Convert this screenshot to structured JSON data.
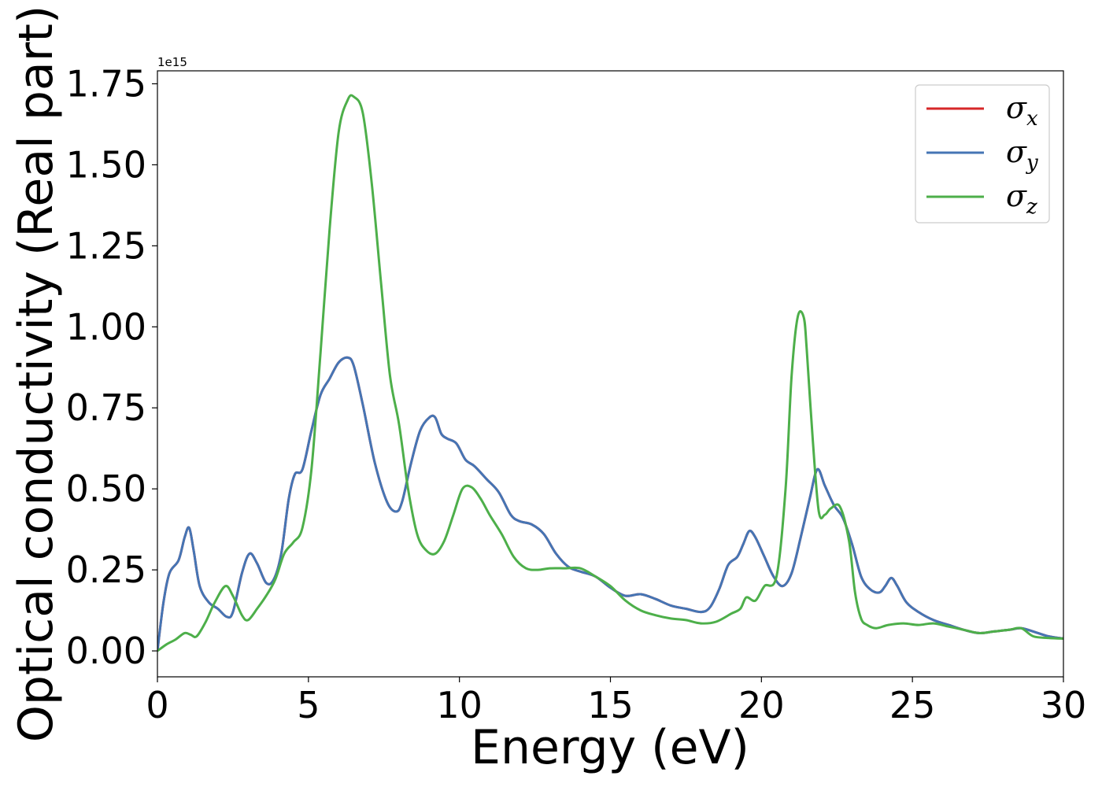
{
  "chart_data": {
    "type": "line",
    "xlabel": "Energy (eV)",
    "ylabel": "Optical conductivity (Real part)",
    "offset_text": "1e15",
    "xlim": [
      0,
      30
    ],
    "ylim": [
      -0.08,
      1.79
    ],
    "xticks": [
      0,
      5,
      10,
      15,
      20,
      25,
      30
    ],
    "xtick_labels": [
      "0",
      "5",
      "10",
      "15",
      "20",
      "25",
      "30"
    ],
    "yticks": [
      0,
      0.25,
      0.5,
      0.75,
      1.0,
      1.25,
      1.5,
      1.75
    ],
    "ytick_labels": [
      "0.00",
      "0.25",
      "0.50",
      "0.75",
      "1.00",
      "1.25",
      "1.50",
      "1.75"
    ],
    "grid": false,
    "legend_position": "top-right",
    "series": [
      {
        "name": "σx",
        "symbol": "σ",
        "sub": "x",
        "color": "#d62728",
        "x": [
          0,
          0.2,
          0.4,
          0.7,
          0.9,
          1.05,
          1.2,
          1.4,
          1.7,
          2.0,
          2.3,
          2.5,
          2.8,
          3.05,
          3.3,
          3.6,
          3.85,
          4.1,
          4.35,
          4.55,
          4.8,
          5.1,
          5.4,
          5.7,
          6.0,
          6.3,
          6.5,
          6.8,
          7.2,
          7.6,
          7.9,
          8.1,
          8.4,
          8.7,
          9.0,
          9.2,
          9.4,
          9.6,
          9.9,
          10.2,
          10.5,
          10.9,
          11.3,
          11.7,
          12.0,
          12.4,
          12.8,
          13.2,
          13.6,
          14.0,
          14.5,
          15.0,
          15.5,
          16.0,
          16.5,
          17.0,
          17.5,
          18.0,
          18.3,
          18.6,
          18.9,
          19.2,
          19.4,
          19.6,
          19.8,
          20.1,
          20.4,
          20.7,
          21.0,
          21.3,
          21.6,
          21.85,
          22.1,
          22.4,
          22.7,
          23.0,
          23.3,
          23.6,
          23.9,
          24.1,
          24.3,
          24.5,
          24.8,
          25.2,
          25.7,
          26.2,
          26.7,
          27.2,
          27.7,
          28.2,
          28.6,
          29.0,
          29.5,
          30.0
        ],
        "y": [
          0.0,
          0.15,
          0.24,
          0.28,
          0.35,
          0.38,
          0.31,
          0.2,
          0.15,
          0.13,
          0.105,
          0.12,
          0.24,
          0.3,
          0.27,
          0.21,
          0.22,
          0.3,
          0.47,
          0.545,
          0.56,
          0.68,
          0.79,
          0.84,
          0.89,
          0.905,
          0.88,
          0.76,
          0.58,
          0.46,
          0.43,
          0.46,
          0.58,
          0.68,
          0.72,
          0.72,
          0.67,
          0.655,
          0.64,
          0.59,
          0.57,
          0.53,
          0.49,
          0.42,
          0.4,
          0.39,
          0.36,
          0.3,
          0.26,
          0.245,
          0.23,
          0.195,
          0.17,
          0.175,
          0.16,
          0.14,
          0.13,
          0.12,
          0.135,
          0.19,
          0.265,
          0.29,
          0.33,
          0.37,
          0.35,
          0.29,
          0.23,
          0.2,
          0.24,
          0.35,
          0.47,
          0.56,
          0.51,
          0.45,
          0.41,
          0.33,
          0.23,
          0.19,
          0.18,
          0.2,
          0.225,
          0.2,
          0.15,
          0.12,
          0.095,
          0.08,
          0.065,
          0.055,
          0.06,
          0.065,
          0.07,
          0.06,
          0.045,
          0.038
        ]
      },
      {
        "name": "σy",
        "symbol": "σ",
        "sub": "y",
        "color": "#4575b4",
        "x": [
          0,
          0.2,
          0.4,
          0.7,
          0.9,
          1.05,
          1.2,
          1.4,
          1.7,
          2.0,
          2.3,
          2.5,
          2.8,
          3.05,
          3.3,
          3.6,
          3.85,
          4.1,
          4.35,
          4.55,
          4.8,
          5.1,
          5.4,
          5.7,
          6.0,
          6.3,
          6.5,
          6.8,
          7.2,
          7.6,
          7.9,
          8.1,
          8.4,
          8.7,
          9.0,
          9.2,
          9.4,
          9.6,
          9.9,
          10.2,
          10.5,
          10.9,
          11.3,
          11.7,
          12.0,
          12.4,
          12.8,
          13.2,
          13.6,
          14.0,
          14.5,
          15.0,
          15.5,
          16.0,
          16.5,
          17.0,
          17.5,
          18.0,
          18.3,
          18.6,
          18.9,
          19.2,
          19.4,
          19.6,
          19.8,
          20.1,
          20.4,
          20.7,
          21.0,
          21.3,
          21.6,
          21.85,
          22.1,
          22.4,
          22.7,
          23.0,
          23.3,
          23.6,
          23.9,
          24.1,
          24.3,
          24.5,
          24.8,
          25.2,
          25.7,
          26.2,
          26.7,
          27.2,
          27.7,
          28.2,
          28.6,
          29.0,
          29.5,
          30.0
        ],
        "y": [
          0.0,
          0.15,
          0.24,
          0.28,
          0.35,
          0.38,
          0.31,
          0.2,
          0.15,
          0.13,
          0.105,
          0.12,
          0.24,
          0.3,
          0.27,
          0.21,
          0.22,
          0.3,
          0.47,
          0.545,
          0.56,
          0.68,
          0.79,
          0.84,
          0.89,
          0.905,
          0.88,
          0.76,
          0.58,
          0.46,
          0.43,
          0.46,
          0.58,
          0.68,
          0.72,
          0.72,
          0.67,
          0.655,
          0.64,
          0.59,
          0.57,
          0.53,
          0.49,
          0.42,
          0.4,
          0.39,
          0.36,
          0.3,
          0.26,
          0.245,
          0.23,
          0.195,
          0.17,
          0.175,
          0.16,
          0.14,
          0.13,
          0.12,
          0.135,
          0.19,
          0.265,
          0.29,
          0.33,
          0.37,
          0.35,
          0.29,
          0.23,
          0.2,
          0.24,
          0.35,
          0.47,
          0.56,
          0.51,
          0.45,
          0.41,
          0.33,
          0.23,
          0.19,
          0.18,
          0.2,
          0.225,
          0.2,
          0.15,
          0.12,
          0.095,
          0.08,
          0.065,
          0.055,
          0.06,
          0.065,
          0.07,
          0.06,
          0.045,
          0.038
        ]
      },
      {
        "name": "σz",
        "symbol": "σ",
        "sub": "z",
        "color": "#4daf4a",
        "x": [
          0,
          0.3,
          0.6,
          0.9,
          1.1,
          1.3,
          1.6,
          1.9,
          2.25,
          2.5,
          2.8,
          3.0,
          3.3,
          3.6,
          3.9,
          4.2,
          4.5,
          4.8,
          5.1,
          5.4,
          5.7,
          6.0,
          6.3,
          6.5,
          6.8,
          7.1,
          7.4,
          7.7,
          8.0,
          8.3,
          8.6,
          8.9,
          9.2,
          9.5,
          9.8,
          10.1,
          10.4,
          10.7,
          11.0,
          11.4,
          11.8,
          12.2,
          12.6,
          13.0,
          13.5,
          14.0,
          14.5,
          15.0,
          15.5,
          16.0,
          16.5,
          17.0,
          17.5,
          18.0,
          18.5,
          19.0,
          19.3,
          19.5,
          19.8,
          20.1,
          20.5,
          20.8,
          21.0,
          21.2,
          21.4,
          21.5,
          21.7,
          21.9,
          22.1,
          22.3,
          22.6,
          22.9,
          23.1,
          23.3,
          23.5,
          23.8,
          24.2,
          24.7,
          25.2,
          25.7,
          26.2,
          26.7,
          27.2,
          27.7,
          28.2,
          28.6,
          29.0,
          29.5,
          30.0
        ],
        "y": [
          0.0,
          0.02,
          0.035,
          0.055,
          0.05,
          0.045,
          0.09,
          0.15,
          0.2,
          0.17,
          0.11,
          0.095,
          0.13,
          0.17,
          0.22,
          0.3,
          0.335,
          0.38,
          0.56,
          0.92,
          1.3,
          1.6,
          1.7,
          1.71,
          1.66,
          1.44,
          1.14,
          0.85,
          0.7,
          0.5,
          0.36,
          0.31,
          0.3,
          0.34,
          0.42,
          0.5,
          0.505,
          0.47,
          0.42,
          0.36,
          0.29,
          0.255,
          0.25,
          0.255,
          0.255,
          0.255,
          0.23,
          0.2,
          0.155,
          0.125,
          0.11,
          0.1,
          0.095,
          0.085,
          0.09,
          0.115,
          0.13,
          0.165,
          0.155,
          0.2,
          0.23,
          0.5,
          0.85,
          1.03,
          1.03,
          0.93,
          0.65,
          0.43,
          0.42,
          0.44,
          0.445,
          0.34,
          0.18,
          0.1,
          0.08,
          0.07,
          0.08,
          0.085,
          0.08,
          0.085,
          0.075,
          0.065,
          0.055,
          0.06,
          0.065,
          0.07,
          0.045,
          0.04,
          0.038
        ]
      }
    ]
  }
}
